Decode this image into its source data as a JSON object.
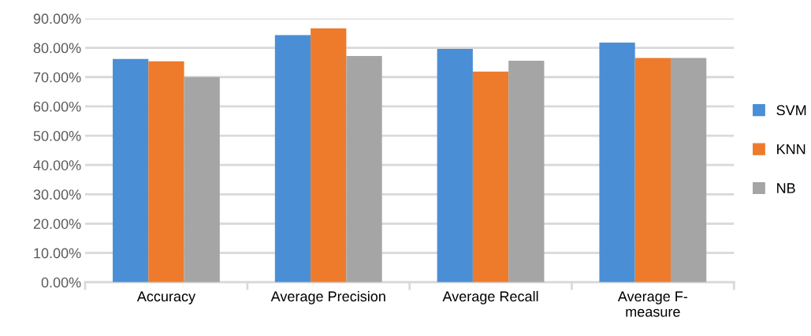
{
  "chart_data": {
    "type": "bar",
    "categories": [
      "Accuracy",
      "Average Precision",
      "Average Recall",
      "Average F-\nmeasure"
    ],
    "series": [
      {
        "name": "SVM",
        "color": "#4a8fd6",
        "values": [
          76.2,
          84.3,
          79.6,
          81.8
        ]
      },
      {
        "name": "KNN",
        "color": "#ee7a2c",
        "values": [
          75.4,
          86.6,
          71.9,
          76.5
        ]
      },
      {
        "name": "NB",
        "color": "#a5a5a5",
        "values": [
          70.0,
          77.2,
          75.6,
          76.5
        ]
      }
    ],
    "ylim": [
      0,
      90
    ],
    "yticks": [
      {
        "value": 0,
        "label": "0.00%"
      },
      {
        "value": 10,
        "label": "10.00%"
      },
      {
        "value": 20,
        "label": "20.00%"
      },
      {
        "value": 30,
        "label": "30.00%"
      },
      {
        "value": 40,
        "label": "40.00%"
      },
      {
        "value": 50,
        "label": "50.00%"
      },
      {
        "value": 60,
        "label": "60.00%"
      },
      {
        "value": 70,
        "label": "70.00%"
      },
      {
        "value": 80,
        "label": "80.00%"
      },
      {
        "value": 90,
        "label": "90.00%"
      }
    ],
    "grid": "y",
    "legend": "right"
  }
}
